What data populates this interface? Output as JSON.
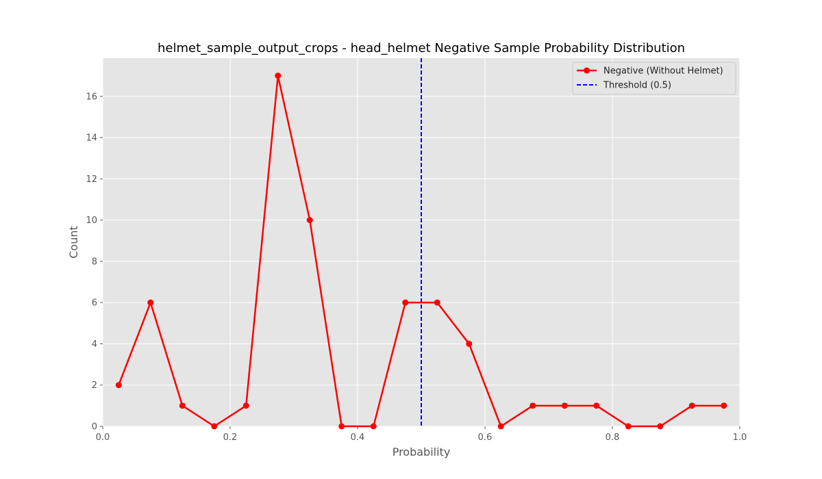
{
  "chart_data": {
    "type": "line",
    "title": "helmet_sample_output_crops - head_helmet Negative Sample Probability Distribution",
    "xlabel": "Probability",
    "ylabel": "Count",
    "xlim": [
      0.0,
      1.0
    ],
    "ylim": [
      0,
      17.85
    ],
    "x_ticks": [
      "0.0",
      "0.2",
      "0.4",
      "0.6",
      "0.8",
      "1.0"
    ],
    "y_ticks": [
      "0",
      "2",
      "4",
      "6",
      "8",
      "10",
      "12",
      "14",
      "16"
    ],
    "grid": true,
    "legend_position": "top-right",
    "series": [
      {
        "name": "Negative (Without Helmet)",
        "color": "#ff0000",
        "marker": "circle",
        "x": [
          0.025,
          0.075,
          0.125,
          0.175,
          0.225,
          0.275,
          0.325,
          0.375,
          0.425,
          0.475,
          0.525,
          0.575,
          0.625,
          0.675,
          0.725,
          0.775,
          0.825,
          0.875,
          0.925,
          0.975
        ],
        "values": [
          2,
          6,
          1,
          0,
          1,
          17,
          10,
          0,
          0,
          6,
          6,
          4,
          0,
          1,
          1,
          1,
          0,
          0,
          1,
          1
        ]
      }
    ],
    "threshold": {
      "name": "Threshold (0.5)",
      "x": 0.5,
      "color": "#0000ff",
      "style": "dashed"
    },
    "background": "#e5e5e5",
    "grid_color": "#ffffff"
  }
}
